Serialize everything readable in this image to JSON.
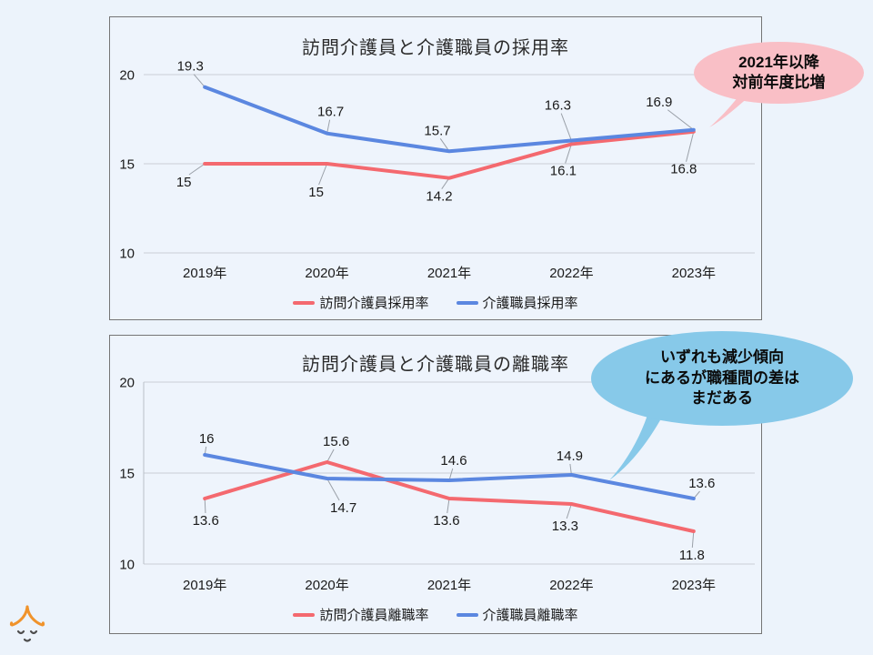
{
  "accent_colors": {
    "visiting_care_line": "#f4696f",
    "care_staff_line": "#5b87e0",
    "hiring_bubble_fill": "#f9bfc6",
    "turnover_bubble_fill": "#87c9e9",
    "mascot_roof": "#f0932b",
    "mascot_face": "#4d4d4d",
    "panel_border": "#757575",
    "gridline": "#c9ced6"
  },
  "chart_data": [
    {
      "type": "line",
      "title": "訪問介護員と介護職員の採用率",
      "categories": [
        "2019年",
        "2020年",
        "2021年",
        "2022年",
        "2023年"
      ],
      "series": [
        {
          "name": "訪問介護員採用率",
          "color": "#f4696f",
          "values": [
            15,
            15,
            14.2,
            16.1,
            16.8
          ]
        },
        {
          "name": "介護職員採用率",
          "color": "#5b87e0",
          "values": [
            19.3,
            16.7,
            15.7,
            16.3,
            16.9
          ]
        }
      ],
      "xlabel": "",
      "ylabel": "",
      "ylim": [
        10,
        20
      ],
      "yticks": [
        10,
        15,
        20
      ],
      "grid": true,
      "legend_position": "bottom",
      "annotation": {
        "text": "2021年以降\n対前年度比増",
        "fill": "#f9bfc6"
      }
    },
    {
      "type": "line",
      "title": "訪問介護員と介護職員の離職率",
      "categories": [
        "2019年",
        "2020年",
        "2021年",
        "2022年",
        "2023年"
      ],
      "series": [
        {
          "name": "訪問介護員離職率",
          "color": "#f4696f",
          "values": [
            13.6,
            15.6,
            13.6,
            13.3,
            11.8
          ]
        },
        {
          "name": "介護職員離職率",
          "color": "#5b87e0",
          "values": [
            16,
            14.7,
            14.6,
            14.9,
            13.6
          ]
        }
      ],
      "xlabel": "",
      "ylabel": "",
      "ylim": [
        10,
        20
      ],
      "yticks": [
        10,
        15,
        20
      ],
      "grid": true,
      "legend_position": "bottom",
      "annotation": {
        "text": "いずれも減少傾向\nにあるが職種間の差は\nまだある",
        "fill": "#87c9e9"
      }
    }
  ]
}
